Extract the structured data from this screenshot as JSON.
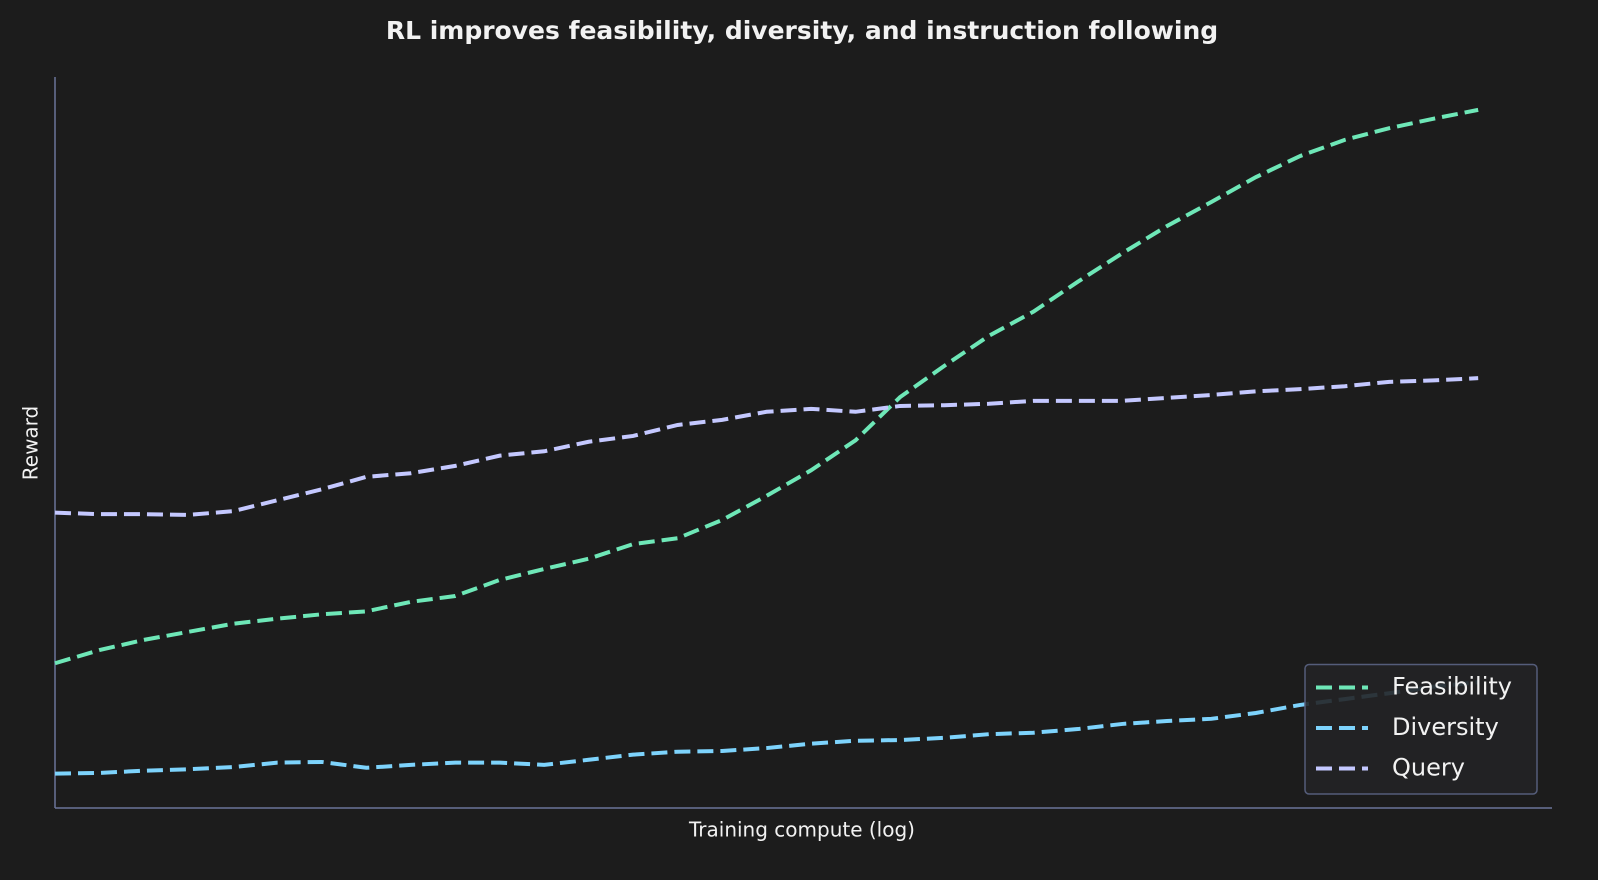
{
  "chart_data": {
    "type": "line",
    "title": "RL improves feasibility, diversity, and instruction following",
    "xlabel": "Training compute (log)",
    "ylabel": "Reward",
    "x": [
      0,
      1,
      2,
      3,
      4,
      5,
      6,
      7,
      8,
      9,
      10,
      11,
      12,
      13,
      14,
      15,
      16,
      17,
      18,
      19,
      20,
      21,
      22,
      23,
      24,
      25,
      26,
      27,
      28,
      29,
      30,
      31,
      32
    ],
    "xlim": [
      0,
      33.66
    ],
    "ylim": [
      0,
      1
    ],
    "legend": "lower right",
    "series": [
      {
        "name": "Feasibility",
        "color": "#6ee7b7",
        "values": [
          0.198,
          0.216,
          0.23,
          0.241,
          0.252,
          0.259,
          0.265,
          0.269,
          0.282,
          0.29,
          0.312,
          0.327,
          0.341,
          0.361,
          0.369,
          0.394,
          0.427,
          0.462,
          0.503,
          0.562,
          0.605,
          0.646,
          0.679,
          0.72,
          0.759,
          0.796,
          0.829,
          0.863,
          0.892,
          0.914,
          0.93,
          0.943,
          0.955
        ]
      },
      {
        "name": "Diversity",
        "color": "#7dd3fc",
        "values": [
          0.047,
          0.048,
          0.051,
          0.053,
          0.056,
          0.062,
          0.063,
          0.055,
          0.059,
          0.062,
          0.062,
          0.059,
          0.066,
          0.073,
          0.077,
          0.078,
          0.082,
          0.088,
          0.092,
          0.093,
          0.096,
          0.101,
          0.103,
          0.108,
          0.115,
          0.119,
          0.122,
          0.13,
          0.141,
          0.149,
          0.157,
          0.166,
          0.172
        ]
      },
      {
        "name": "Query",
        "color": "#c4c8ff",
        "values": [
          0.404,
          0.402,
          0.402,
          0.401,
          0.406,
          0.421,
          0.436,
          0.453,
          0.458,
          0.468,
          0.482,
          0.488,
          0.501,
          0.509,
          0.524,
          0.531,
          0.542,
          0.546,
          0.542,
          0.55,
          0.551,
          0.553,
          0.557,
          0.557,
          0.557,
          0.561,
          0.565,
          0.57,
          0.573,
          0.577,
          0.583,
          0.585,
          0.588
        ]
      }
    ]
  }
}
